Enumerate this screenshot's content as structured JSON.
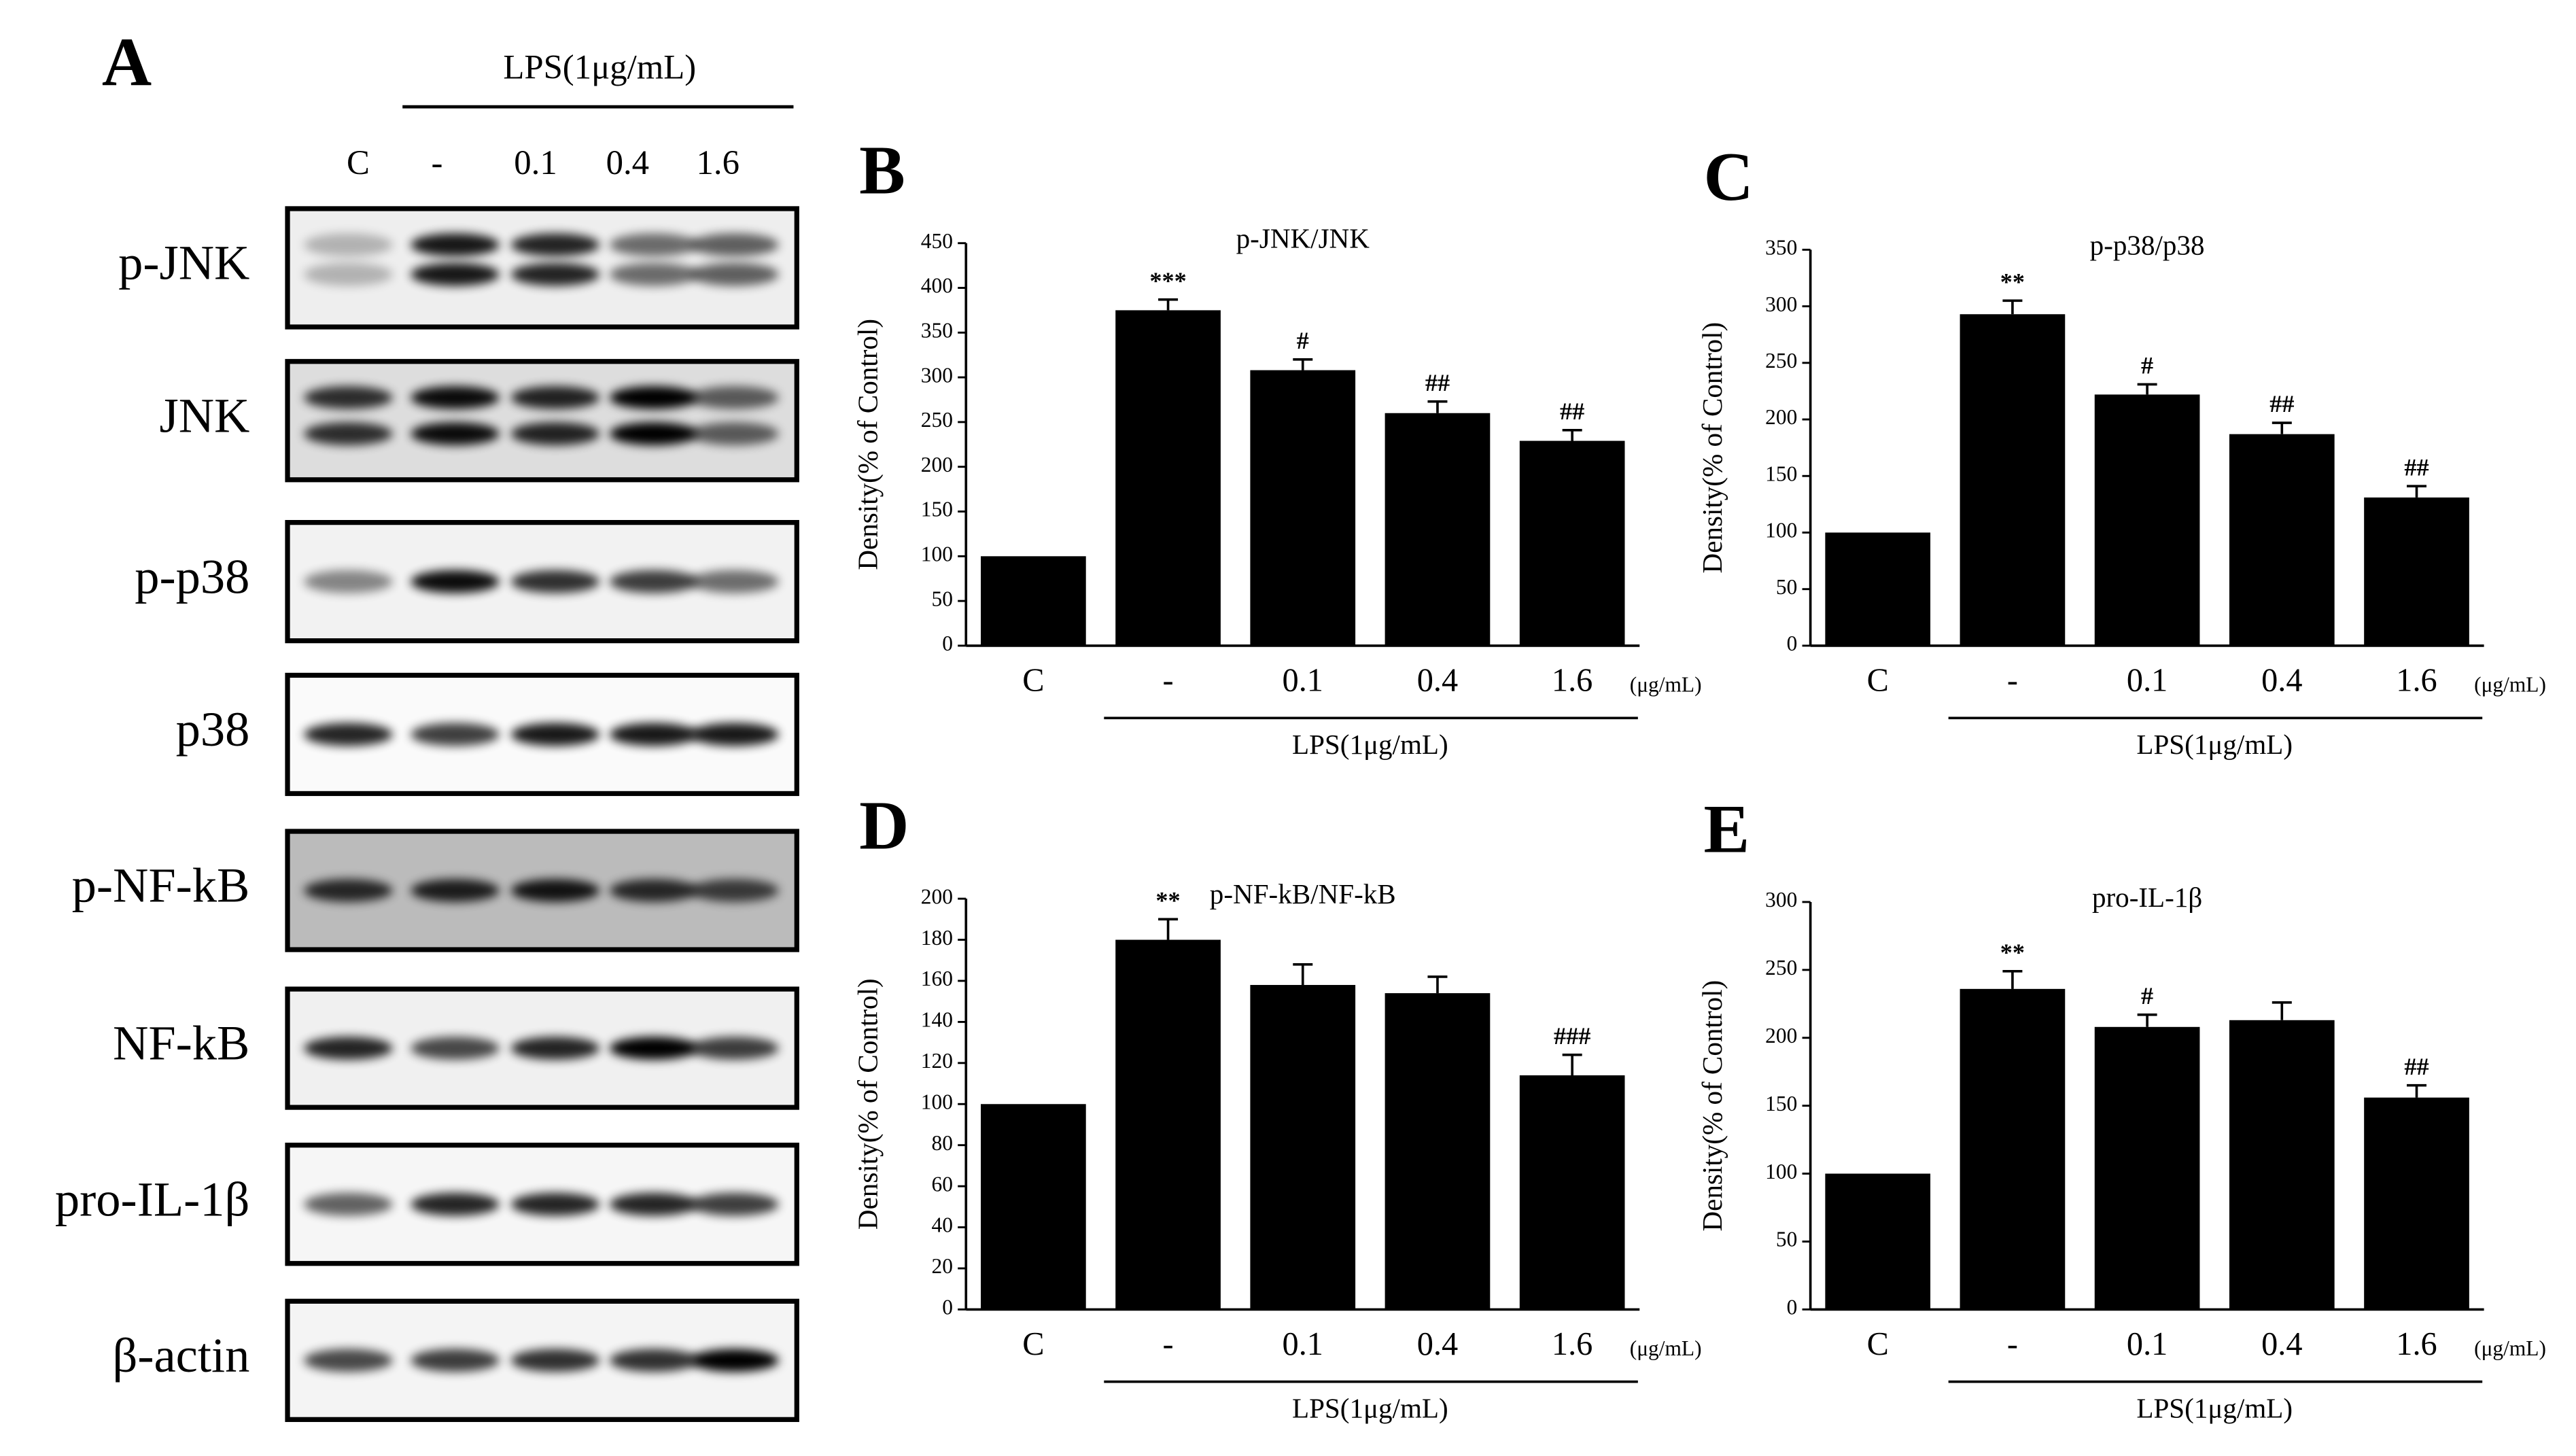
{
  "chart_data": [
    {
      "type": "bar",
      "panel": "B",
      "title": "p-JNK/JNK",
      "y_label": "Density(% of Control)",
      "categories": [
        "C",
        "-",
        "0.1",
        "0.4",
        "1.6"
      ],
      "unit": "(μg/mL)",
      "group_label": "LPS(1μg/mL)",
      "values": [
        100,
        375,
        308,
        260,
        229
      ],
      "errors": [
        null,
        12,
        12,
        13,
        12
      ],
      "annotations": [
        null,
        "***",
        "#",
        "##",
        "##"
      ],
      "color": "#000000",
      "ylim": [
        0,
        450
      ],
      "yticks": [
        0,
        50,
        100,
        150,
        200,
        250,
        300,
        350,
        400,
        450
      ]
    },
    {
      "type": "bar",
      "panel": "C",
      "title": "p-p38/p38",
      "y_label": "Density(% of Control)",
      "categories": [
        "C",
        "-",
        "0.1",
        "0.4",
        "1.6"
      ],
      "unit": "(μg/mL)",
      "group_label": "LPS(1μg/mL)",
      "values": [
        100,
        293,
        222,
        187,
        131
      ],
      "errors": [
        null,
        12,
        9,
        10,
        10
      ],
      "annotations": [
        null,
        "**",
        "#",
        "##",
        "##"
      ],
      "color": "#000000",
      "ylim": [
        0,
        350
      ],
      "yticks": [
        0,
        50,
        100,
        150,
        200,
        250,
        300,
        350
      ]
    },
    {
      "type": "bar",
      "panel": "D",
      "title": "p-NF-kB/NF-kB",
      "y_label": "Density(% of Control)",
      "categories": [
        "C",
        "-",
        "0.1",
        "0.4",
        "1.6"
      ],
      "unit": "(μg/mL)",
      "group_label": "LPS(1μg/mL)",
      "values": [
        100,
        180,
        158,
        154,
        114
      ],
      "errors": [
        null,
        10,
        10,
        8,
        10
      ],
      "annotations": [
        null,
        "**",
        null,
        null,
        "###"
      ],
      "color": "#000000",
      "ylim": [
        0,
        200
      ],
      "yticks": [
        0,
        20,
        40,
        60,
        80,
        100,
        120,
        140,
        160,
        180,
        200
      ]
    },
    {
      "type": "bar",
      "panel": "E",
      "title": "pro-IL-1β",
      "y_label": "Density(% of Control)",
      "categories": [
        "C",
        "-",
        "0.1",
        "0.4",
        "1.6"
      ],
      "unit": "(μg/mL)",
      "group_label": "LPS(1μg/mL)",
      "values": [
        100,
        236,
        208,
        213,
        156
      ],
      "errors": [
        null,
        13,
        9,
        13,
        9
      ],
      "annotations": [
        null,
        "**",
        "#",
        null,
        "##"
      ],
      "color": "#000000",
      "ylim": [
        0,
        300
      ],
      "yticks": [
        0,
        50,
        100,
        150,
        200,
        250,
        300
      ]
    }
  ],
  "blot": {
    "panel": "A",
    "treatment": "LPS(1μg/mL)",
    "lanes": [
      "C",
      "-",
      "0.1",
      "0.4",
      "1.6"
    ],
    "rows": [
      "p-JNK",
      "JNK",
      "p-p38",
      "p38",
      "p-NF-kB",
      "NF-kB",
      "pro-IL-1β",
      "β-actin"
    ]
  }
}
